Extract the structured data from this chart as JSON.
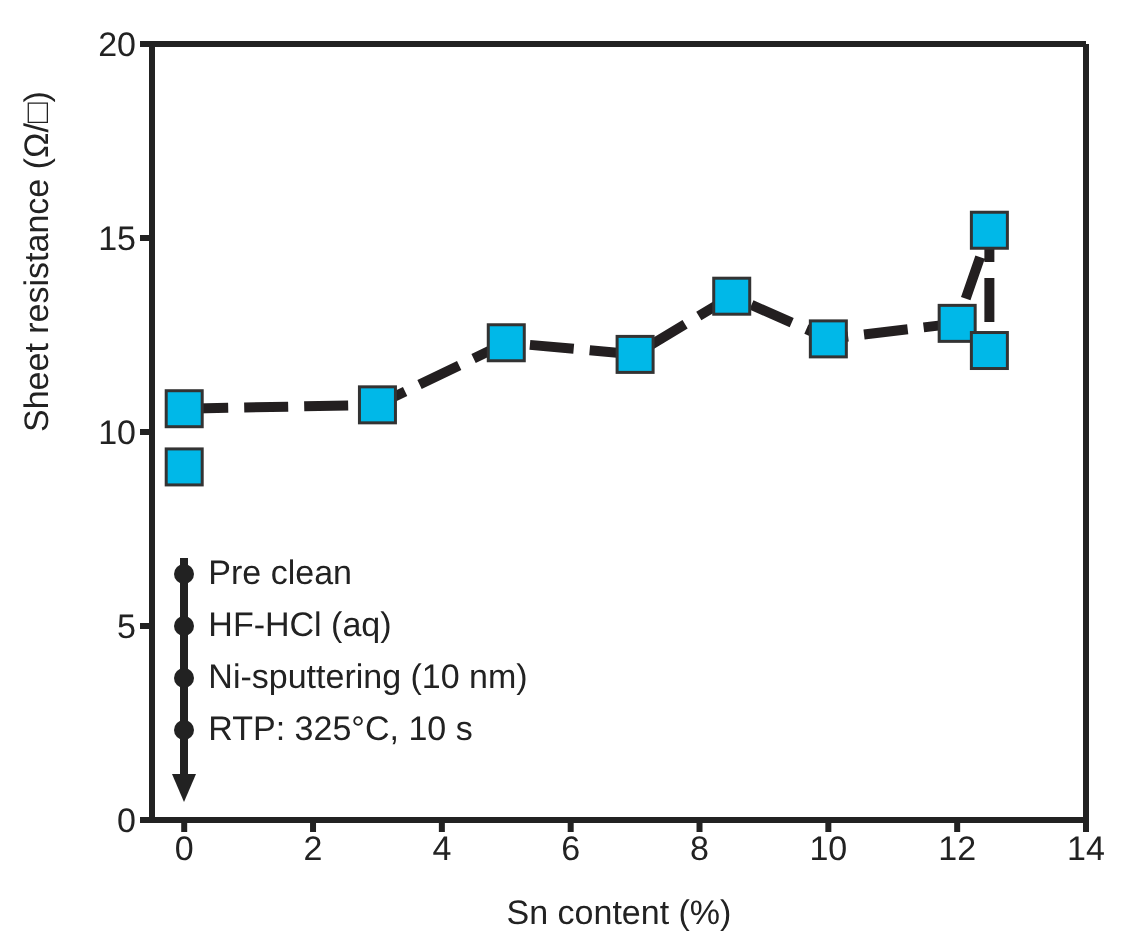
{
  "chart_data": {
    "type": "line",
    "xlabel": "Sn content (%)",
    "ylabel": "Sheet resistance (Ω/□)",
    "xlim": [
      -0.5,
      14
    ],
    "xticks": [
      0,
      2,
      4,
      6,
      8,
      10,
      12,
      14
    ],
    "ylim": [
      0,
      20
    ],
    "yticks": [
      0,
      5,
      10,
      15,
      20
    ],
    "grid": false,
    "marker": "square",
    "line_style": "dashed",
    "series": [
      {
        "color": "#00b8e8",
        "x": [
          0,
          3,
          5,
          7,
          8.5,
          10,
          12,
          12.5,
          12.5
        ],
        "values": [
          10.6,
          10.7,
          12.3,
          12.0,
          13.5,
          12.4,
          12.8,
          15.2,
          12.1
        ]
      },
      {
        "type": "scatter",
        "color": "#00b8e8",
        "x": [
          0
        ],
        "values": [
          9.1
        ]
      }
    ],
    "annotations": [
      "Pre clean",
      "HF-HCl (aq)",
      "Ni-sputtering (10 nm)",
      "RTP: 325°C, 10 s"
    ]
  }
}
